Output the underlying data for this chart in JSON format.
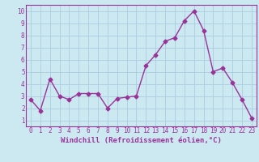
{
  "x": [
    0,
    1,
    2,
    3,
    4,
    5,
    6,
    7,
    8,
    9,
    10,
    11,
    12,
    13,
    14,
    15,
    16,
    17,
    18,
    19,
    20,
    21,
    22,
    23
  ],
  "y": [
    2.7,
    1.8,
    4.4,
    3.0,
    2.7,
    3.2,
    3.2,
    3.2,
    2.0,
    2.8,
    2.9,
    3.0,
    5.5,
    6.4,
    7.5,
    7.8,
    9.2,
    10.0,
    8.4,
    5.0,
    5.3,
    4.1,
    2.7,
    1.2
  ],
  "line_color": "#993399",
  "marker": "D",
  "marker_size": 2.5,
  "bg_color": "#cce8f0",
  "grid_color": "#aaccdd",
  "xlabel": "Windchill (Refroidissement éolien,°C)",
  "xlabel_fontsize": 6.5,
  "ylim": [
    0.5,
    10.5
  ],
  "xlim": [
    -0.5,
    23.5
  ],
  "yticks": [
    1,
    2,
    3,
    4,
    5,
    6,
    7,
    8,
    9,
    10
  ],
  "xticks": [
    0,
    1,
    2,
    3,
    4,
    5,
    6,
    7,
    8,
    9,
    10,
    11,
    12,
    13,
    14,
    15,
    16,
    17,
    18,
    19,
    20,
    21,
    22,
    23
  ],
  "tick_fontsize": 5.5,
  "line_width": 1.0
}
